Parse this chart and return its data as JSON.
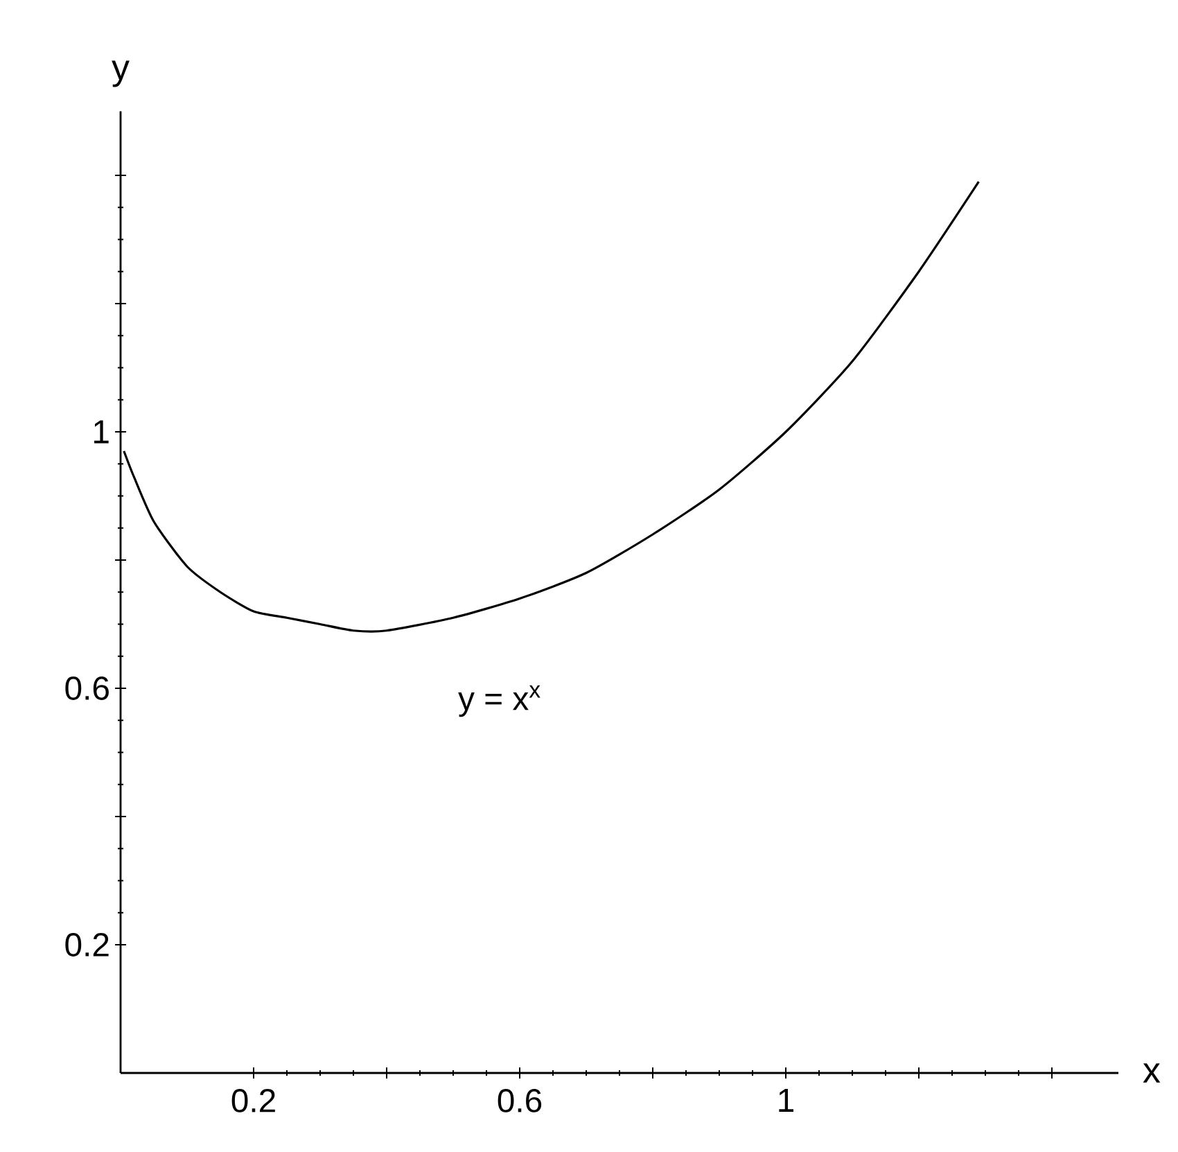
{
  "chart_data": {
    "type": "line",
    "xlabel": "x",
    "ylabel": "y",
    "annotations": [
      "y = x$^{x}$"
    ],
    "x": [
      0.005,
      0.02,
      0.05,
      0.1,
      0.15,
      0.2,
      0.25,
      0.3,
      0.35,
      0.4,
      0.5,
      0.6,
      0.7,
      0.8,
      0.9,
      1.0,
      1.1,
      1.2,
      1.29
    ],
    "series": [
      {
        "color": "#000000",
        "values": [
          0.97,
          0.93,
          0.86,
          0.79,
          0.75,
          0.72,
          0.71,
          0.7,
          0.69,
          0.69,
          0.71,
          0.74,
          0.78,
          0.84,
          0.91,
          1.0,
          1.11,
          1.25,
          1.39
        ]
      }
    ],
    "xlim": [
      0,
      1.5
    ],
    "ylim": [
      0,
      1.5
    ],
    "xticks": [
      0.2,
      {
        "value": 0.4,
        "label": null
      },
      0.6,
      {
        "value": 0.8,
        "label": null
      },
      1,
      {
        "value": 1.2,
        "label": null
      },
      {
        "value": 1.4,
        "label": null
      }
    ],
    "yticks": [
      0.2,
      {
        "value": 0.4,
        "label": null
      },
      0.6,
      {
        "value": 0.8,
        "label": null
      },
      1,
      {
        "value": 1.2,
        "label": null
      },
      {
        "value": 1.4,
        "label": null
      }
    ],
    "marker": "none",
    "line_style": "solid"
  }
}
